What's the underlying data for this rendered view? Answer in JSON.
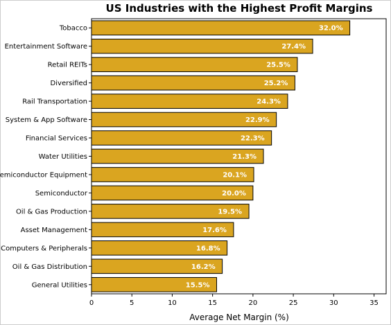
{
  "chart_data": {
    "type": "bar",
    "orientation": "horizontal",
    "title": "US Industries with the Highest Profit Margins",
    "xlabel": "Average Net Margin (%)",
    "ylabel": "",
    "xlim": [
      0,
      36.5
    ],
    "xticks": [
      0,
      5,
      10,
      15,
      20,
      25,
      30,
      35
    ],
    "grid": false,
    "bar_color": "#DAA520",
    "edge_color": "#000000",
    "label_color": "#FFFFFF",
    "categories": [
      "Tobacco",
      "Entertainment Software",
      "Retail REITs",
      "Diversified",
      "Rail Transportation",
      "System & App Software",
      "Financial Services",
      "Water Utilities",
      "Semiconductor Equipment",
      "Semiconductor",
      "Oil & Gas Production",
      "Asset Management",
      "Computers & Peripherals",
      "Oil & Gas Distribution",
      "General Utilities"
    ],
    "values": [
      32.0,
      27.4,
      25.5,
      25.2,
      24.3,
      22.9,
      22.3,
      21.3,
      20.1,
      20.0,
      19.5,
      17.6,
      16.8,
      16.2,
      15.5
    ],
    "value_labels": [
      "32.0%",
      "27.4%",
      "25.5%",
      "25.2%",
      "24.3%",
      "22.9%",
      "22.3%",
      "21.3%",
      "20.1%",
      "20.0%",
      "19.5%",
      "17.6%",
      "16.8%",
      "16.2%",
      "15.5%"
    ]
  }
}
